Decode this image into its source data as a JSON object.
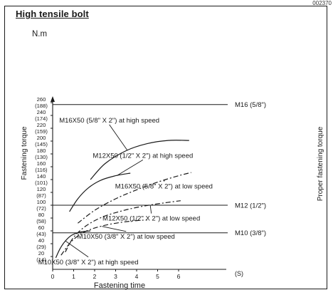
{
  "doc_code": "002370",
  "chart_data": {
    "type": "line",
    "title": "High tensile bolt",
    "ylabel": "Fastening torque",
    "ylabel_right": "Proper fastening torque",
    "xlabel": "Fastening time",
    "y_unit": "N.m",
    "x_unit": "(S)",
    "xlim": [
      0,
      7
    ],
    "ylim": [
      0,
      270
    ],
    "x_ticks": [
      "0",
      "1",
      "2",
      "3",
      "4",
      "5",
      "6"
    ],
    "y_ticks": [
      {
        "value": 260,
        "nm": "260",
        "kgf": "(188)"
      },
      {
        "value": 240,
        "nm": "240",
        "kgf": "(174)"
      },
      {
        "value": 220,
        "nm": "220",
        "kgf": "(159)"
      },
      {
        "value": 200,
        "nm": "200",
        "kgf": "(145)"
      },
      {
        "value": 180,
        "nm": "180",
        "kgf": "(130)"
      },
      {
        "value": 160,
        "nm": "160",
        "kgf": "(116)"
      },
      {
        "value": 140,
        "nm": "140",
        "kgf": "(101)"
      },
      {
        "value": 120,
        "nm": "120",
        "kgf": "(87)"
      },
      {
        "value": 100,
        "nm": "100",
        "kgf": "(72)"
      },
      {
        "value": 80,
        "nm": "80",
        "kgf": "(58)"
      },
      {
        "value": 60,
        "nm": "60",
        "kgf": "(43)"
      },
      {
        "value": 40,
        "nm": "40",
        "kgf": "(29)"
      },
      {
        "value": 20,
        "nm": "20",
        "kgf": "(14)"
      }
    ],
    "reference_lines": [
      {
        "label": "M16 (5/8\")",
        "y": 257
      },
      {
        "label": "M12 (1/2\")",
        "y": 100
      },
      {
        "label": "M10 (3/8\")",
        "y": 57
      }
    ],
    "series": [
      {
        "name": "M16X50 (5/8\" X 2\") at high speed",
        "style": "solid",
        "x": [
          1.8,
          2.5,
          3.5,
          4.5,
          5.5,
          6.5
        ],
        "y": [
          140,
          165,
          185,
          196,
          201,
          201
        ]
      },
      {
        "name": "M12X50 (1/2\" X 2\") at high speed",
        "style": "solid",
        "x": [
          0.8,
          1.2,
          1.7,
          2.3,
          3.0,
          3.7
        ],
        "y": [
          90,
          110,
          127,
          139,
          146,
          150
        ]
      },
      {
        "name": "M16X50 (5/8\" X 2\") at low speed",
        "style": "dashdot",
        "x": [
          1.2,
          2.0,
          3.0,
          4.0,
          5.0,
          6.0,
          6.6
        ],
        "y": [
          72,
          92,
          110,
          124,
          136,
          146,
          151
        ]
      },
      {
        "name": "M12X50 (1/2\" X 2\") at low speed",
        "style": "dashdot",
        "x": [
          0.6,
          1.0,
          1.6,
          2.4,
          3.4,
          4.4,
          5.4,
          6.1
        ],
        "y": [
          27,
          50,
          68,
          82,
          92,
          99,
          104,
          107
        ]
      },
      {
        "name": "M10X50 (3/8\" X 2\") at low speed",
        "style": "dashdot",
        "x": [
          0.4,
          0.8,
          1.2,
          1.7,
          2.4,
          3.2,
          4.0,
          4.5
        ],
        "y": [
          22,
          40,
          52,
          61,
          68,
          73,
          76,
          77
        ]
      },
      {
        "name": "M10X50 (3/8\" X 2\") at high speed",
        "style": "solid",
        "x": [
          0.15,
          0.35,
          0.6,
          0.9,
          1.3,
          1.8
        ],
        "y": [
          18,
          32,
          44,
          53,
          58,
          60
        ]
      }
    ],
    "annotations": [
      {
        "series": 0,
        "label_x": 2.7,
        "label_y": 229,
        "arrow_x": 3.55,
        "arrow_y": 186
      },
      {
        "series": 1,
        "label_x": 4.3,
        "label_y": 174,
        "arrow_x": 3.05,
        "arrow_y": 146
      },
      {
        "series": 2,
        "label_x": 5.3,
        "label_y": 126,
        "arrow_x": 5.35,
        "arrow_y": 140
      },
      {
        "series": 3,
        "label_x": 4.7,
        "label_y": 76,
        "arrow_x": 4.65,
        "arrow_y": 100
      },
      {
        "series": 4,
        "label_x": 3.5,
        "label_y": 48,
        "arrow_x": 2.35,
        "arrow_y": 67
      },
      {
        "series": 5,
        "label_x": 1.7,
        "label_y": 8,
        "arrow_x": 0.62,
        "arrow_y": 44
      }
    ]
  }
}
